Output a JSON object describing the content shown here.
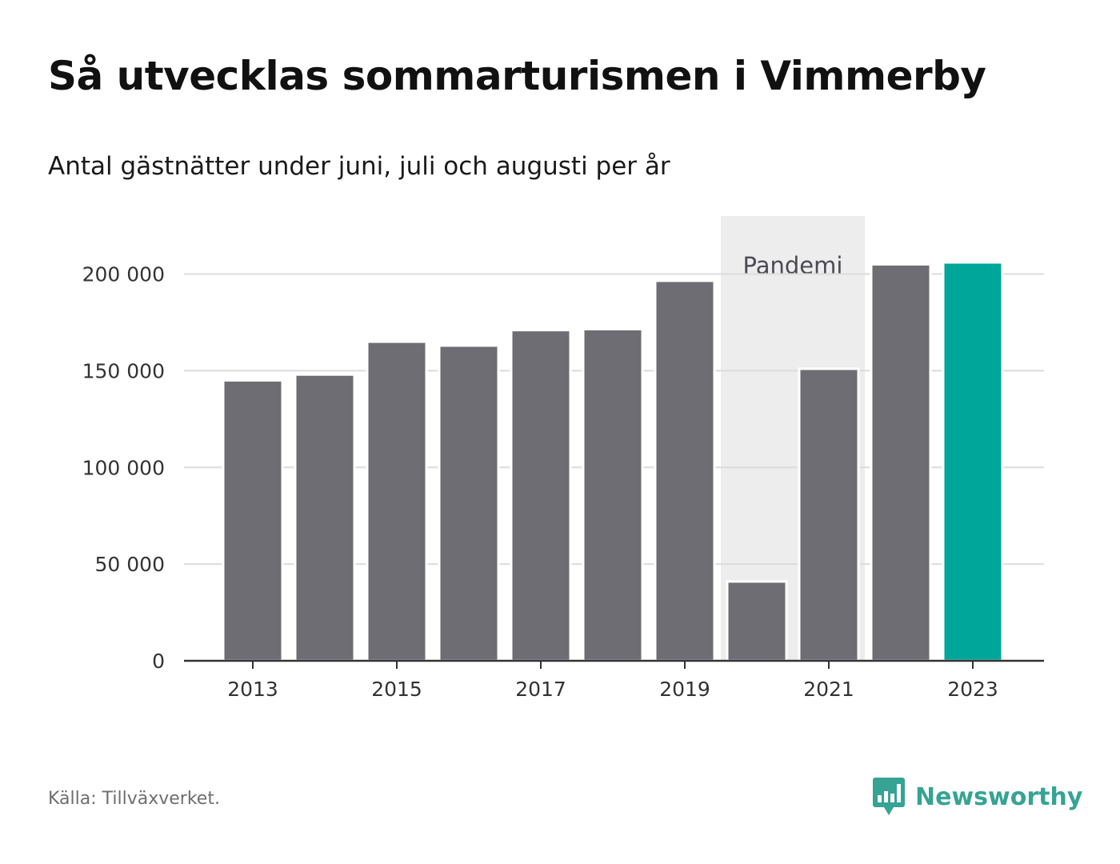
{
  "chart_data": {
    "type": "bar",
    "title": "Så utvecklas sommarturismen i Vimmerby",
    "subtitle": "Antal gästnätter under juni, juli och augusti per år",
    "categories": [
      "2013",
      "2014",
      "2015",
      "2016",
      "2017",
      "2018",
      "2019",
      "2020",
      "2021",
      "2022",
      "2023"
    ],
    "values": [
      145000,
      148000,
      165000,
      163000,
      171000,
      171500,
      196500,
      41000,
      151000,
      205000,
      206000
    ],
    "x_tick_labels": [
      "2013",
      "2015",
      "2017",
      "2019",
      "2021",
      "2023"
    ],
    "y_ticks": [
      0,
      50000,
      100000,
      150000,
      200000
    ],
    "y_tick_labels": [
      "0",
      "50 000",
      "100 000",
      "150 000",
      "200 000"
    ],
    "ylim": [
      0,
      230000
    ],
    "xlabel": "",
    "ylabel": "",
    "grid": true,
    "highlight_category": "2023",
    "annotation": {
      "label": "Pandemi",
      "from": "2020",
      "to": "2021"
    },
    "colors": {
      "bar": "#6e6d73",
      "highlight": "#00a69a",
      "band": "#ededed",
      "grid": "#dcdcdc",
      "axis": "#333333"
    }
  },
  "footer": {
    "source": "Källa: Tillväxverket.",
    "brand": "Newsworthy",
    "brand_icon": "newsworthy-logo-icon",
    "brand_color": "#36a394"
  }
}
